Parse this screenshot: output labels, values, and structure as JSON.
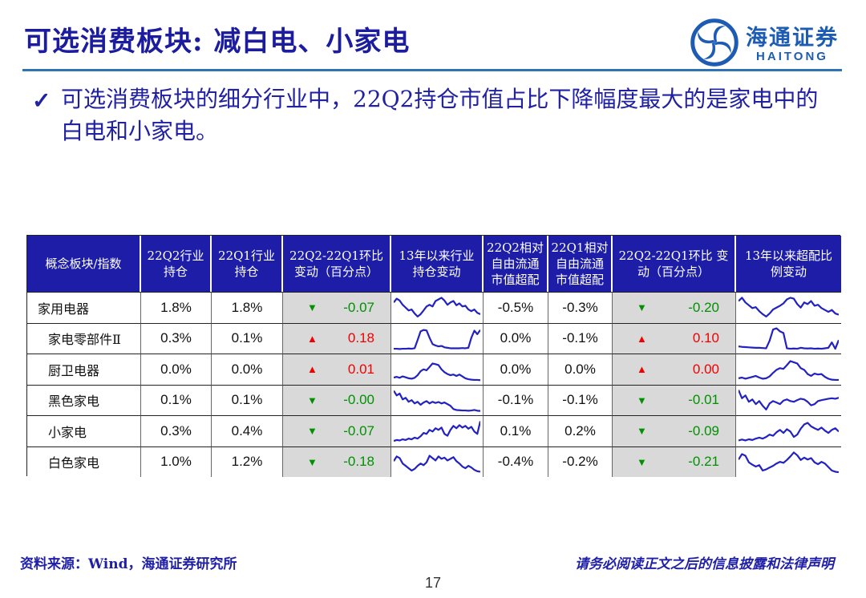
{
  "title": "可选消费板块: 减白电、小家电",
  "logo": {
    "cn": "海通证券",
    "en": "HAITONG"
  },
  "bullet": {
    "check": "✓",
    "text": "可选消费板块的细分行业中，22Q2持仓市值占比下降幅度最大的是家电中的白电和小家电。"
  },
  "colors": {
    "title_blue": "#1c1c9e",
    "rule_blue": "#2e74b5",
    "header_bg": "#1d1da8",
    "header_text": "#ffffff",
    "gray_cell": "#d9d9d9",
    "green": "#009100",
    "red": "#f00000",
    "spark_line": "#2222c2",
    "logo_blue": "#1e5cb3",
    "footer_blue": "#1f1fa8"
  },
  "table": {
    "headers": [
      "概念板块/指数",
      "22Q2行业 持仓",
      "22Q1行业 持仓",
      "22Q2-22Q1环比 变动（百分点）",
      "13年以来行业 持仓变动",
      "22Q2相对 自由流通 市值超配",
      "22Q1相对 自由流通 市值超配",
      "22Q2-22Q1环比 变动（百分点）",
      "13年以来超配比 例变动"
    ],
    "rows": [
      {
        "name": "家用电器",
        "q2_hold": "1.8%",
        "q1_hold": "1.8%",
        "chg_hold": {
          "dir": "down",
          "arrow": "▼",
          "val": "-0.07"
        },
        "spark_hold": [
          0.72,
          0.88,
          0.8,
          0.62,
          0.5,
          0.38,
          0.42,
          0.25,
          0.12,
          0.22,
          0.38,
          0.55,
          0.62,
          0.55,
          0.78,
          0.85,
          0.92,
          0.8,
          0.62,
          0.72,
          0.78,
          0.6,
          0.68,
          0.55,
          0.58,
          0.42,
          0.35,
          0.42,
          0.28,
          0.22
        ],
        "q2_over": "-0.5%",
        "q1_over": "-0.3%",
        "chg_over": {
          "dir": "down",
          "arrow": "▼",
          "val": "-0.20"
        },
        "spark_over": [
          0.78,
          0.92,
          0.72,
          0.6,
          0.48,
          0.52,
          0.35,
          0.22,
          0.12,
          0.25,
          0.42,
          0.5,
          0.58,
          0.68,
          0.85,
          0.92,
          0.88,
          0.65,
          0.5,
          0.72,
          0.65,
          0.78,
          0.58,
          0.62,
          0.48,
          0.4,
          0.32,
          0.4,
          0.25,
          0.2
        ]
      },
      {
        "name": "家电零部件Ⅱ",
        "q2_hold": "0.3%",
        "q1_hold": "0.1%",
        "chg_hold": {
          "dir": "up",
          "arrow": "▲",
          "val": "0.18"
        },
        "spark_hold": [
          0.08,
          0.08,
          0.07,
          0.08,
          0.08,
          0.09,
          0.08,
          0.1,
          0.45,
          0.82,
          0.88,
          0.86,
          0.55,
          0.28,
          0.22,
          0.18,
          0.2,
          0.14,
          0.12,
          0.1,
          0.1,
          0.1,
          0.1,
          0.11,
          0.1,
          0.12,
          0.55,
          0.85,
          0.7,
          0.88
        ],
        "q2_over": "0.0%",
        "q1_over": "-0.1%",
        "chg_over": {
          "dir": "up",
          "arrow": "▲",
          "val": "0.10"
        },
        "spark_over": [
          0.18,
          0.16,
          0.15,
          0.14,
          0.13,
          0.12,
          0.12,
          0.11,
          0.1,
          0.42,
          0.9,
          0.95,
          0.82,
          0.75,
          0.1,
          0.08,
          0.09,
          0.08,
          0.12,
          0.1,
          0.09,
          0.1,
          0.08,
          0.09,
          0.08,
          0.1,
          0.12,
          0.35,
          0.08,
          0.45
        ]
      },
      {
        "name": "厨卫电器",
        "q2_hold": "0.0%",
        "q1_hold": "0.0%",
        "chg_hold": {
          "dir": "up",
          "arrow": "▲",
          "val": "0.01"
        },
        "spark_hold": [
          0.15,
          0.18,
          0.14,
          0.2,
          0.16,
          0.12,
          0.1,
          0.14,
          0.25,
          0.42,
          0.5,
          0.46,
          0.6,
          0.75,
          0.72,
          0.68,
          0.5,
          0.38,
          0.3,
          0.25,
          0.28,
          0.22,
          0.28,
          0.2,
          0.12,
          0.08,
          0.06,
          0.05,
          0.05,
          0.04
        ],
        "q2_over": "0.0%",
        "q1_over": "0.0%",
        "chg_over": {
          "dir": "up",
          "arrow": "▲",
          "val": "0.00"
        },
        "spark_over": [
          0.12,
          0.15,
          0.1,
          0.14,
          0.18,
          0.22,
          0.15,
          0.1,
          0.12,
          0.2,
          0.35,
          0.48,
          0.55,
          0.52,
          0.68,
          0.85,
          0.8,
          0.75,
          0.55,
          0.48,
          0.3,
          0.22,
          0.32,
          0.28,
          0.3,
          0.18,
          0.1,
          0.06,
          0.05,
          0.05
        ]
      },
      {
        "name": "黑色家电",
        "q2_hold": "0.1%",
        "q1_hold": "0.1%",
        "chg_hold": {
          "dir": "down",
          "arrow": "▼",
          "val": "-0.00"
        },
        "spark_hold": [
          0.92,
          0.72,
          0.8,
          0.55,
          0.62,
          0.45,
          0.52,
          0.38,
          0.45,
          0.32,
          0.42,
          0.48,
          0.38,
          0.45,
          0.4,
          0.44,
          0.38,
          0.42,
          0.35,
          0.28,
          0.14,
          0.1,
          0.09,
          0.08,
          0.08,
          0.07,
          0.08,
          0.1,
          0.07,
          0.06
        ],
        "q2_over": "-0.1%",
        "q1_over": "-0.1%",
        "chg_over": {
          "dir": "down",
          "arrow": "▼",
          "val": "-0.01"
        },
        "spark_over": [
          0.95,
          0.6,
          0.72,
          0.45,
          0.55,
          0.35,
          0.48,
          0.28,
          0.12,
          0.38,
          0.48,
          0.42,
          0.35,
          0.5,
          0.55,
          0.48,
          0.45,
          0.52,
          0.58,
          0.55,
          0.45,
          0.3,
          0.35,
          0.48,
          0.52,
          0.55,
          0.58,
          0.6,
          0.58,
          0.62
        ]
      },
      {
        "name": "小家电",
        "q2_hold": "0.3%",
        "q1_hold": "0.4%",
        "chg_hold": {
          "dir": "down",
          "arrow": "▼",
          "val": "-0.07"
        },
        "spark_hold": [
          0.08,
          0.12,
          0.1,
          0.15,
          0.12,
          0.18,
          0.15,
          0.22,
          0.18,
          0.28,
          0.42,
          0.38,
          0.55,
          0.48,
          0.62,
          0.55,
          0.65,
          0.38,
          0.3,
          0.55,
          0.72,
          0.62,
          0.75,
          0.65,
          0.72,
          0.6,
          0.68,
          0.48,
          0.38,
          0.92
        ],
        "q2_over": "0.1%",
        "q1_over": "0.2%",
        "chg_over": {
          "dir": "down",
          "arrow": "▼",
          "val": "-0.09"
        },
        "spark_over": [
          0.1,
          0.14,
          0.1,
          0.15,
          0.12,
          0.18,
          0.22,
          0.18,
          0.25,
          0.35,
          0.3,
          0.45,
          0.55,
          0.42,
          0.58,
          0.48,
          0.25,
          0.35,
          0.6,
          0.78,
          0.85,
          0.7,
          0.62,
          0.55,
          0.65,
          0.52,
          0.42,
          0.55,
          0.62,
          0.48
        ]
      },
      {
        "name": "白色家电",
        "q2_hold": "1.0%",
        "q1_hold": "1.2%",
        "chg_hold": {
          "dir": "down",
          "arrow": "▼",
          "val": "-0.18"
        },
        "spark_hold": [
          0.55,
          0.75,
          0.68,
          0.45,
          0.35,
          0.25,
          0.15,
          0.22,
          0.35,
          0.45,
          0.38,
          0.5,
          0.78,
          0.68,
          0.58,
          0.75,
          0.65,
          0.7,
          0.58,
          0.65,
          0.72,
          0.55,
          0.45,
          0.32,
          0.25,
          0.35,
          0.28,
          0.18,
          0.12,
          0.1
        ],
        "q2_over": "-0.4%",
        "q1_over": "-0.2%",
        "chg_over": {
          "dir": "down",
          "arrow": "▼",
          "val": "-0.21"
        },
        "spark_over": [
          0.62,
          0.85,
          0.78,
          0.5,
          0.4,
          0.32,
          0.38,
          0.15,
          0.2,
          0.28,
          0.35,
          0.45,
          0.52,
          0.48,
          0.6,
          0.75,
          0.92,
          0.8,
          0.6,
          0.7,
          0.62,
          0.68,
          0.5,
          0.42,
          0.52,
          0.45,
          0.3,
          0.15,
          0.1,
          0.08
        ]
      }
    ]
  },
  "footer": {
    "source": "资料来源：Wind，海通证券研究所",
    "disclaimer": "请务必阅读正文之后的信息披露和法律声明",
    "page": "17"
  }
}
